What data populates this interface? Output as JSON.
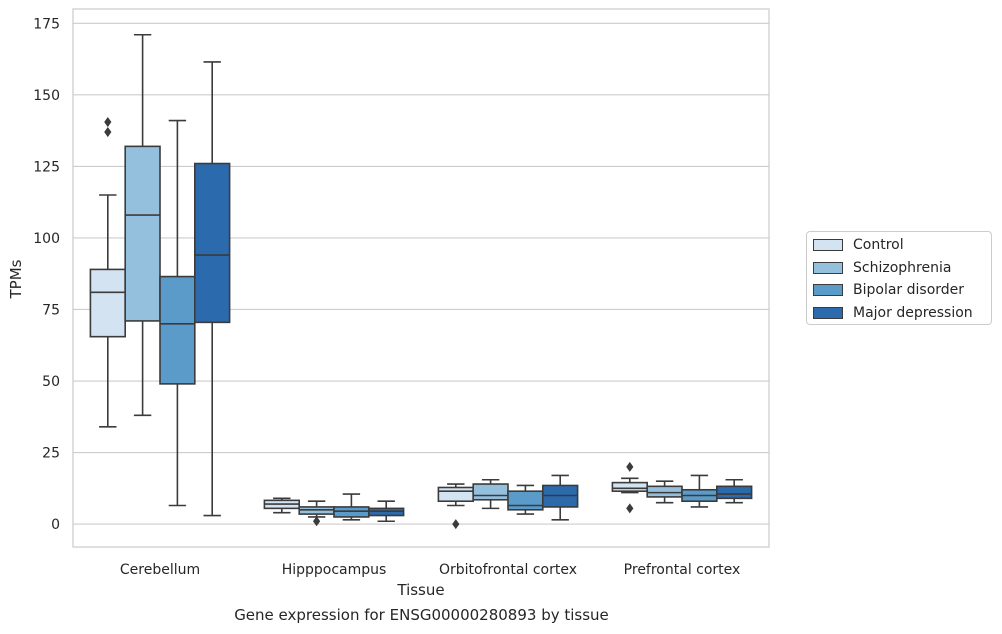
{
  "chart_data": {
    "type": "boxplot",
    "caption": "Gene expression for ENSG00000280893 by tissue",
    "xlabel": "Tissue",
    "ylabel": "TPMs",
    "ylim": [
      -8,
      180
    ],
    "yticks": [
      0,
      25,
      50,
      75,
      100,
      125,
      150,
      175
    ],
    "grid": "horizontal",
    "legend_position": "right",
    "categories": [
      "Cerebellum",
      "Hipppocampus",
      "Orbitofrontal cortex",
      "Prefrontal cortex"
    ],
    "series": [
      {
        "name": "Control",
        "color": "#d4e3f2",
        "boxes": [
          {
            "whislo": 34,
            "q1": 65.5,
            "med": 81,
            "q3": 89,
            "whishi": 115,
            "fliers": [
              137,
              140.5
            ]
          },
          {
            "whislo": 4,
            "q1": 5.5,
            "med": 7,
            "q3": 8.3,
            "whishi": 9,
            "fliers": []
          },
          {
            "whislo": 6.5,
            "q1": 8,
            "med": 11.5,
            "q3": 12.8,
            "whishi": 14,
            "fliers": [
              0
            ]
          },
          {
            "whislo": 11,
            "q1": 11.5,
            "med": 12.5,
            "q3": 14.5,
            "whishi": 16,
            "fliers": [
              5.5,
              20
            ]
          }
        ]
      },
      {
        "name": "Schizophrenia",
        "color": "#94bfdd",
        "boxes": [
          {
            "whislo": 38,
            "q1": 71,
            "med": 108,
            "q3": 132,
            "whishi": 171,
            "fliers": []
          },
          {
            "whislo": 2.5,
            "q1": 3.5,
            "med": 5,
            "q3": 6,
            "whishi": 8,
            "fliers": [
              1
            ]
          },
          {
            "whislo": 5.5,
            "q1": 8.5,
            "med": 10,
            "q3": 14,
            "whishi": 15.5,
            "fliers": []
          },
          {
            "whislo": 7.5,
            "q1": 9.5,
            "med": 11,
            "q3": 13.2,
            "whishi": 15,
            "fliers": []
          }
        ]
      },
      {
        "name": "Bipolar disorder",
        "color": "#5b9bca",
        "boxes": [
          {
            "whislo": 6.5,
            "q1": 49,
            "med": 70,
            "q3": 86.5,
            "whishi": 141,
            "fliers": []
          },
          {
            "whislo": 1.5,
            "q1": 2.5,
            "med": 4.5,
            "q3": 6,
            "whishi": 10.5,
            "fliers": []
          },
          {
            "whislo": 3.5,
            "q1": 5,
            "med": 6.5,
            "q3": 11.5,
            "whishi": 13.5,
            "fliers": []
          },
          {
            "whislo": 6,
            "q1": 8,
            "med": 10,
            "q3": 12,
            "whishi": 17,
            "fliers": []
          }
        ]
      },
      {
        "name": "Major depression",
        "color": "#2a6aad",
        "boxes": [
          {
            "whislo": 3,
            "q1": 70.5,
            "med": 94,
            "q3": 126,
            "whishi": 161.5,
            "fliers": []
          },
          {
            "whislo": 1,
            "q1": 3,
            "med": 4.5,
            "q3": 5.5,
            "whishi": 8,
            "fliers": []
          },
          {
            "whislo": 1.5,
            "q1": 6,
            "med": 10,
            "q3": 13.5,
            "whishi": 17,
            "fliers": []
          },
          {
            "whislo": 7.5,
            "q1": 9,
            "med": 10.5,
            "q3": 13.2,
            "whishi": 15.5,
            "fliers": []
          }
        ]
      }
    ]
  }
}
